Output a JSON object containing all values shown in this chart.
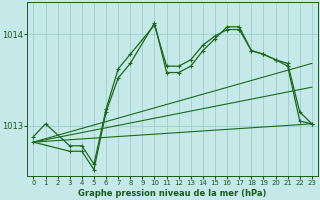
{
  "background_color": "#c5e8e8",
  "grid_color": "#9ecece",
  "line_color": "#1a6b1a",
  "text_color": "#1a5c1a",
  "xlabel": "Graphe pression niveau de la mer (hPa)",
  "ylim": [
    1012.45,
    1014.35
  ],
  "xlim": [
    -0.5,
    23.5
  ],
  "yticks": [
    1013,
    1014
  ],
  "xticks": [
    0,
    1,
    2,
    3,
    4,
    5,
    6,
    7,
    8,
    9,
    10,
    11,
    12,
    13,
    14,
    15,
    16,
    17,
    18,
    19,
    20,
    21,
    22,
    23
  ],
  "series_volatile1_x": [
    0,
    1,
    3,
    4,
    5,
    6,
    7,
    8,
    10,
    11,
    12,
    13,
    14,
    15,
    16,
    17,
    18,
    19,
    20,
    21,
    22,
    23
  ],
  "series_volatile1_y": [
    1012.88,
    1013.02,
    1012.78,
    1012.78,
    1012.58,
    1013.18,
    1013.62,
    1013.78,
    1014.1,
    1013.65,
    1013.65,
    1013.72,
    1013.88,
    1013.98,
    1014.05,
    1014.05,
    1013.82,
    1013.78,
    1013.72,
    1013.68,
    1013.15,
    1013.02
  ],
  "series_volatile2_x": [
    0,
    3,
    4,
    5,
    6,
    7,
    8,
    10,
    11,
    12,
    13,
    14,
    15,
    16,
    17,
    18,
    19,
    20,
    21,
    22,
    23
  ],
  "series_volatile2_y": [
    1012.82,
    1012.72,
    1012.72,
    1012.52,
    1013.15,
    1013.52,
    1013.68,
    1014.12,
    1013.58,
    1013.58,
    1013.65,
    1013.82,
    1013.95,
    1014.08,
    1014.08,
    1013.82,
    1013.78,
    1013.72,
    1013.65,
    1013.05,
    1013.02
  ],
  "trend1_x": [
    0,
    23
  ],
  "trend1_y": [
    1012.82,
    1013.02
  ],
  "trend2_x": [
    0,
    23
  ],
  "trend2_y": [
    1012.82,
    1013.42
  ],
  "trend3_x": [
    0,
    23
  ],
  "trend3_y": [
    1012.82,
    1013.68
  ]
}
